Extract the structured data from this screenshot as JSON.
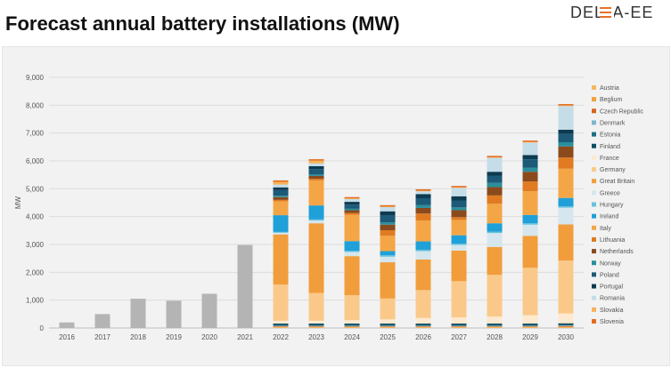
{
  "header": {
    "title": "Forecast annual battery installations (MW)",
    "logo_text": "DELTA-EE",
    "logo_accent_color": "#e8702a"
  },
  "chart_data": {
    "type": "bar",
    "stacked": true,
    "title": "",
    "xlabel": "",
    "ylabel": "MW",
    "ylim": [
      0,
      9000
    ],
    "yticks": [
      "0",
      "1,000",
      "2,000",
      "3,000",
      "4,000",
      "5,000",
      "6,000",
      "7,000",
      "8,000",
      "9,000"
    ],
    "grid": true,
    "legend_position": "right",
    "categories": [
      "2016",
      "2017",
      "2018",
      "2019",
      "2020",
      "2021",
      "2022",
      "2023",
      "2024",
      "2025",
      "2026",
      "2027",
      "2028",
      "2029",
      "2030"
    ],
    "historical": {
      "color": "#b4b4b4",
      "values": [
        200,
        500,
        1050,
        980,
        1230,
        2980,
        null,
        null,
        null,
        null,
        null,
        null,
        null,
        null,
        null
      ]
    },
    "series": [
      {
        "name": "Austria",
        "color": "#f7b85c",
        "values": [
          null,
          null,
          null,
          null,
          null,
          null,
          20,
          20,
          20,
          20,
          20,
          20,
          20,
          20,
          20
        ]
      },
      {
        "name": "Beglium",
        "color": "#f2a13a",
        "values": [
          null,
          null,
          null,
          null,
          null,
          null,
          20,
          20,
          20,
          20,
          20,
          20,
          20,
          20,
          20
        ]
      },
      {
        "name": "Czech Republic",
        "color": "#d9641e",
        "values": [
          null,
          null,
          null,
          null,
          null,
          null,
          20,
          20,
          20,
          20,
          20,
          20,
          20,
          20,
          30
        ]
      },
      {
        "name": "Denmark",
        "color": "#7fb6ce",
        "values": [
          null,
          null,
          null,
          null,
          null,
          null,
          20,
          20,
          20,
          20,
          20,
          20,
          20,
          20,
          20
        ]
      },
      {
        "name": "Estonia",
        "color": "#1e6f86",
        "values": [
          null,
          null,
          null,
          null,
          null,
          null,
          20,
          20,
          20,
          20,
          20,
          20,
          20,
          20,
          20
        ]
      },
      {
        "name": "Finland",
        "color": "#0f4d63",
        "values": [
          null,
          null,
          null,
          null,
          null,
          null,
          60,
          60,
          60,
          60,
          60,
          60,
          60,
          60,
          60
        ]
      },
      {
        "name": "France",
        "color": "#fde9cf",
        "values": [
          null,
          null,
          null,
          null,
          null,
          null,
          100,
          100,
          120,
          150,
          200,
          220,
          250,
          300,
          350
        ]
      },
      {
        "name": "Germany",
        "color": "#fac98a",
        "values": [
          null,
          null,
          null,
          null,
          null,
          null,
          1300,
          1000,
          900,
          750,
          1000,
          1300,
          1500,
          1700,
          1900
        ]
      },
      {
        "name": "Great Britain",
        "color": "#f19d3c",
        "values": [
          null,
          null,
          null,
          null,
          null,
          null,
          1800,
          2500,
          1400,
          1300,
          1100,
          1100,
          1000,
          1150,
          1300
        ]
      },
      {
        "name": "Greece",
        "color": "#d5e6ee",
        "values": [
          null,
          null,
          null,
          null,
          null,
          null,
          60,
          100,
          150,
          200,
          300,
          200,
          500,
          400,
          600
        ]
      },
      {
        "name": "Hungary",
        "color": "#67c1dc",
        "values": [
          null,
          null,
          null,
          null,
          null,
          null,
          30,
          40,
          40,
          50,
          50,
          50,
          50,
          50,
          50
        ]
      },
      {
        "name": "Ireland",
        "color": "#1fa0d8",
        "values": [
          null,
          null,
          null,
          null,
          null,
          null,
          600,
          500,
          350,
          150,
          300,
          300,
          300,
          300,
          300
        ]
      },
      {
        "name": "Italy",
        "color": "#f4a646",
        "values": [
          null,
          null,
          null,
          null,
          null,
          null,
          500,
          900,
          950,
          550,
          750,
          550,
          700,
          850,
          1050
        ]
      },
      {
        "name": "Lithuania",
        "color": "#e07b22",
        "values": [
          null,
          null,
          null,
          null,
          null,
          null,
          50,
          60,
          60,
          200,
          250,
          100,
          300,
          350,
          400
        ]
      },
      {
        "name": "Netherlands",
        "color": "#8a4a1c",
        "values": [
          null,
          null,
          null,
          null,
          null,
          null,
          100,
          100,
          100,
          200,
          200,
          250,
          300,
          350,
          400
        ]
      },
      {
        "name": "Norway",
        "color": "#2a8f9a",
        "values": [
          null,
          null,
          null,
          null,
          null,
          null,
          50,
          50,
          50,
          80,
          100,
          100,
          150,
          150,
          150
        ]
      },
      {
        "name": "Poland",
        "color": "#1c5a78",
        "values": [
          null,
          null,
          null,
          null,
          null,
          null,
          200,
          200,
          150,
          250,
          250,
          250,
          250,
          300,
          300
        ]
      },
      {
        "name": "Portugal",
        "color": "#0c3b52",
        "values": [
          null,
          null,
          null,
          null,
          null,
          null,
          100,
          100,
          100,
          150,
          150,
          150,
          150,
          150,
          150
        ]
      },
      {
        "name": "Romania",
        "color": "#c5dde8",
        "values": [
          null,
          null,
          null,
          null,
          null,
          null,
          100,
          100,
          100,
          150,
          100,
          300,
          500,
          450,
          850
        ]
      },
      {
        "name": "Slovakia",
        "color": "#f7b15a",
        "values": [
          null,
          null,
          null,
          null,
          null,
          null,
          100,
          100,
          20,
          20,
          20,
          20,
          20,
          20,
          20
        ]
      },
      {
        "name": "Slovenia",
        "color": "#e46d1e",
        "values": [
          null,
          null,
          null,
          null,
          null,
          null,
          50,
          50,
          50,
          50,
          50,
          50,
          50,
          50,
          50
        ]
      }
    ]
  }
}
